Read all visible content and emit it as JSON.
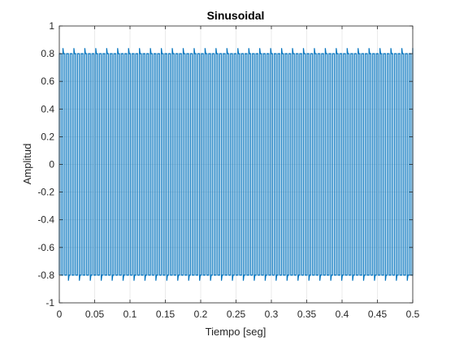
{
  "chart_data": {
    "type": "line",
    "title": "Sinusoidal",
    "xlabel": "Tiempo [seg]",
    "ylabel": "Amplitud",
    "xlim": [
      0,
      0.5
    ],
    "ylim": [
      -1,
      1
    ],
    "xticks": [
      0,
      0.05,
      0.1,
      0.15,
      0.2,
      0.25,
      0.3,
      0.35,
      0.4,
      0.45,
      0.5
    ],
    "xtick_labels": [
      "0",
      "0.05",
      "0.1",
      "0.15",
      "0.2",
      "0.25",
      "0.3",
      "0.35",
      "0.4",
      "0.45",
      "0.5"
    ],
    "yticks": [
      -1,
      -0.8,
      -0.6,
      -0.4,
      -0.2,
      0,
      0.2,
      0.4,
      0.6,
      0.8,
      1
    ],
    "ytick_labels": [
      "-1",
      "-0.8",
      "-0.6",
      "-0.4",
      "-0.2",
      "0",
      "0.2",
      "0.4",
      "0.6",
      "0.8",
      "1"
    ],
    "grid": true,
    "series": [
      {
        "color": "#0072bd",
        "signal": {
          "kind": "square-like oscillation",
          "high_level": 0.8,
          "low_level": -0.8,
          "peak_level": 0.84,
          "trough_level": -0.84,
          "cycles_in_view": 97
        }
      }
    ]
  }
}
